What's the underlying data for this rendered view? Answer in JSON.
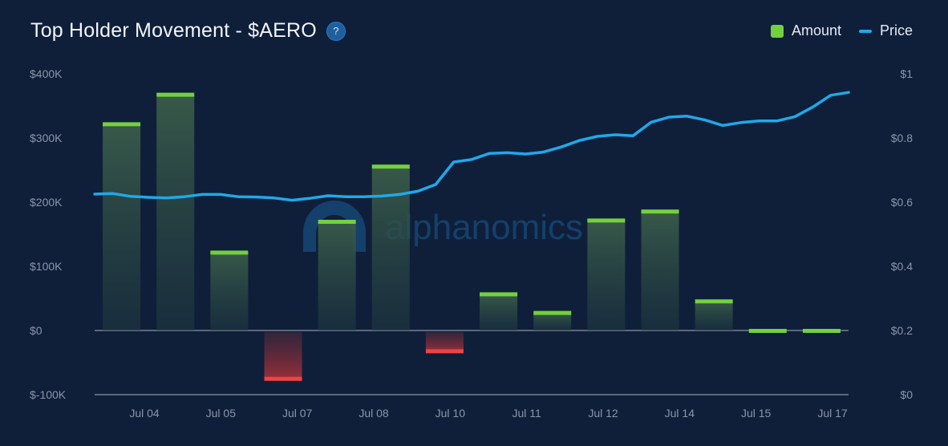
{
  "title": "Top Holder Movement - $AERO",
  "help_label": "?",
  "watermark": "alphanomics",
  "legend": {
    "amount": "Amount",
    "price": "Price"
  },
  "colors": {
    "amount": "#73d13d",
    "negative": "#ef4444",
    "price": "#1fa9e9",
    "background": "#0f1f3a",
    "axis_text": "#8a96a8"
  },
  "chart_data": {
    "type": "bar",
    "y_left": {
      "ticks": [
        "$-100K",
        "$0",
        "$100K",
        "$200K",
        "$300K",
        "$400K"
      ],
      "range": [
        -100000,
        400000
      ]
    },
    "y_right": {
      "ticks": [
        "$0",
        "$0.2",
        "$0.4",
        "$0.6",
        "$0.8",
        "$1"
      ],
      "range": [
        0,
        1
      ]
    },
    "x_tick_labels": [
      "Jul 04",
      "Jul 05",
      "Jul 07",
      "Jul 08",
      "Jul 10",
      "Jul 11",
      "Jul 12",
      "Jul 14",
      "Jul 15",
      "Jul 17"
    ],
    "series": [
      {
        "name": "Amount",
        "type": "bar",
        "values": [
          322000,
          368000,
          122000,
          -76000,
          170000,
          256000,
          -33000,
          57000,
          28000,
          172000,
          186000,
          46000,
          0,
          0
        ]
      },
      {
        "name": "Price",
        "type": "line",
        "values": [
          0.625,
          0.627,
          0.618,
          0.615,
          0.613,
          0.617,
          0.624,
          0.624,
          0.617,
          0.616,
          0.613,
          0.606,
          0.612,
          0.62,
          0.617,
          0.617,
          0.619,
          0.624,
          0.634,
          0.655,
          0.725,
          0.733,
          0.752,
          0.754,
          0.75,
          0.756,
          0.772,
          0.792,
          0.805,
          0.81,
          0.807,
          0.849,
          0.865,
          0.868,
          0.856,
          0.839,
          0.848,
          0.853,
          0.853,
          0.866,
          0.896,
          0.933,
          0.942
        ]
      }
    ]
  }
}
